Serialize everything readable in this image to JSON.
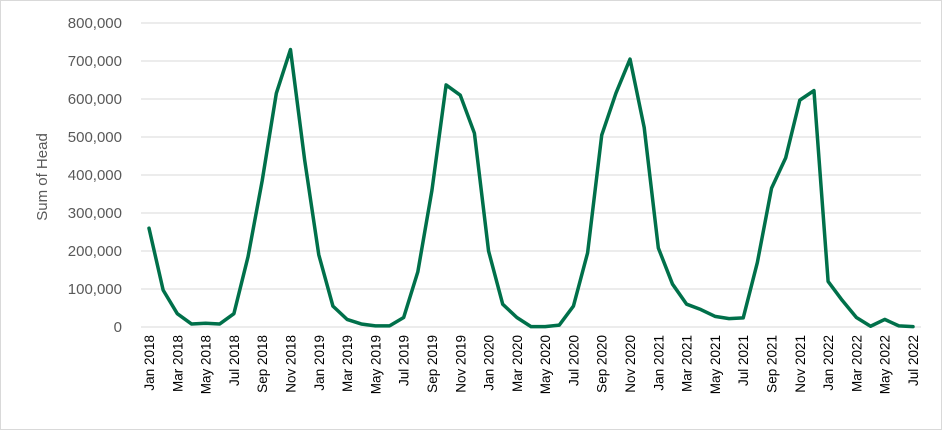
{
  "chart_data": {
    "type": "line",
    "title": "",
    "xlabel": "",
    "ylabel": "Sum of Head",
    "ylim": [
      0,
      800000
    ],
    "yticks": [
      0,
      100000,
      200000,
      300000,
      400000,
      500000,
      600000,
      700000,
      800000
    ],
    "ytick_labels": [
      "0",
      "100,000",
      "200,000",
      "300,000",
      "400,000",
      "500,000",
      "600,000",
      "700,000",
      "800,000"
    ],
    "grid": true,
    "legend": "none",
    "line_color": "#00704a",
    "x": [
      "Jan 2018",
      "Feb 2018",
      "Mar 2018",
      "Apr 2018",
      "May 2018",
      "Jun 2018",
      "Jul 2018",
      "Aug 2018",
      "Sep 2018",
      "Oct 2018",
      "Nov 2018",
      "Dec 2018",
      "Jan 2019",
      "Feb 2019",
      "Mar 2019",
      "Apr 2019",
      "May 2019",
      "Jun 2019",
      "Jul 2019",
      "Aug 2019",
      "Sep 2019",
      "Oct 2019",
      "Nov 2019",
      "Dec 2019",
      "Jan 2020",
      "Feb 2020",
      "Mar 2020",
      "Apr 2020",
      "May 2020",
      "Jun 2020",
      "Jul 2020",
      "Aug 2020",
      "Sep 2020",
      "Oct 2020",
      "Nov 2020",
      "Dec 2020",
      "Jan 2021",
      "Feb 2021",
      "Mar 2021",
      "Apr 2021",
      "May 2021",
      "Jun 2021",
      "Jul 2021",
      "Aug 2021",
      "Sep 2021",
      "Oct 2021",
      "Nov 2021",
      "Dec 2021",
      "Jan 2022",
      "Feb 2022",
      "Mar 2022",
      "Apr 2022",
      "May 2022",
      "Jun 2022",
      "Jul 2022"
    ],
    "xtick_labels": [
      "Jan 2018",
      "Mar 2018",
      "May 2018",
      "Jul 2018",
      "Sep 2018",
      "Nov 2018",
      "Jan 2019",
      "Mar 2019",
      "May 2019",
      "Jul 2019",
      "Sep 2019",
      "Nov 2019",
      "Jan 2020",
      "Mar 2020",
      "May 2020",
      "Jul 2020",
      "Sep 2020",
      "Nov 2020",
      "Jan 2021",
      "Mar 2021",
      "May 2021",
      "Jul 2021",
      "Sep 2021",
      "Nov 2021",
      "Jan 2022",
      "Mar 2022",
      "May 2022",
      "Jul 2022"
    ],
    "series": [
      {
        "values": [
          260000,
          97000,
          35000,
          8000,
          10000,
          8000,
          35000,
          185000,
          385000,
          615000,
          730000,
          440000,
          190000,
          55000,
          20000,
          8000,
          3000,
          3000,
          25000,
          145000,
          360000,
          637000,
          610000,
          510000,
          200000,
          60000,
          25000,
          1000,
          1000,
          5000,
          55000,
          195000,
          505000,
          615000,
          705000,
          525000,
          208000,
          113000,
          60000,
          46000,
          28000,
          22000,
          24000,
          170000,
          365000,
          445000,
          597000,
          622000,
          120000,
          70000,
          25000,
          2000,
          20000,
          3000,
          1000
        ]
      }
    ]
  }
}
